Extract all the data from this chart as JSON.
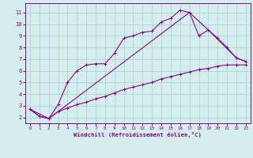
{
  "line1_x": [
    0,
    1,
    2,
    3,
    4,
    5,
    6,
    7,
    8,
    9,
    10,
    11,
    12,
    13,
    14,
    15,
    16,
    17,
    18,
    19,
    20,
    21,
    22,
    23
  ],
  "line1_y": [
    2.7,
    2.1,
    1.9,
    3.1,
    5.0,
    6.0,
    6.5,
    6.6,
    6.6,
    7.5,
    8.8,
    9.0,
    9.3,
    9.4,
    10.2,
    10.5,
    11.2,
    11.0,
    9.0,
    9.5,
    8.8,
    8.0,
    7.1,
    6.8
  ],
  "line2_x": [
    0,
    1,
    2,
    3,
    4,
    5,
    6,
    7,
    8,
    9,
    10,
    11,
    12,
    13,
    14,
    15,
    16,
    17,
    18,
    19,
    20,
    21,
    22,
    23
  ],
  "line2_y": [
    2.7,
    2.1,
    1.9,
    2.5,
    2.8,
    3.1,
    3.3,
    3.6,
    3.8,
    4.1,
    4.4,
    4.6,
    4.8,
    5.0,
    5.3,
    5.5,
    5.7,
    5.9,
    6.1,
    6.2,
    6.4,
    6.5,
    6.5,
    6.5
  ],
  "line3_x": [
    0,
    2,
    17,
    19,
    22,
    23
  ],
  "line3_y": [
    2.7,
    1.9,
    11.0,
    9.5,
    7.1,
    6.8
  ],
  "line_color": "#8b008b",
  "bg_color": "#d4eeee",
  "grid_color": "#aacece",
  "xlim": [
    -0.5,
    23.5
  ],
  "ylim": [
    1.5,
    11.8
  ],
  "yticks": [
    2,
    3,
    4,
    5,
    6,
    7,
    8,
    9,
    10,
    11
  ],
  "xticks": [
    0,
    1,
    2,
    3,
    4,
    5,
    6,
    7,
    8,
    9,
    10,
    11,
    12,
    13,
    14,
    15,
    16,
    17,
    18,
    19,
    20,
    21,
    22,
    23
  ],
  "xlabel": "Windchill (Refroidissement éolien,°C)",
  "title": ""
}
